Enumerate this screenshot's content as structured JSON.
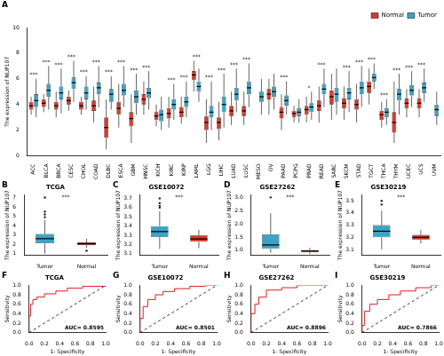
{
  "chart_data": [
    {
      "panel": "A",
      "type": "box",
      "y_label": "The expression of NUP107",
      "legend": "top-right",
      "grid": false,
      "ylim": [
        0,
        10
      ],
      "yticks": [
        0,
        2,
        4,
        6,
        8,
        10
      ],
      "categories": [
        "ACC",
        "BLCA",
        "BRCA",
        "CESC",
        "CHOL",
        "COAD",
        "DLBC",
        "ESCA",
        "GBM",
        "HNSC",
        "KICH",
        "KIRC",
        "KIRP",
        "LAML",
        "LGG",
        "LIHC",
        "LUAD",
        "LUSC",
        "MESO",
        "OV",
        "PAAD",
        "PCPG",
        "PRAD",
        "READ",
        "SARC",
        "SKCM",
        "STAD",
        "TGCT",
        "THCA",
        "THYM",
        "UCEC",
        "UCS",
        "UVM"
      ],
      "significance": [
        "***",
        "***",
        "***",
        "***",
        "***",
        "***",
        "***",
        "***",
        "***",
        "***",
        null,
        "***",
        "***",
        "***",
        "***",
        "***",
        "***",
        "***",
        null,
        null,
        "***",
        null,
        "*",
        "***",
        null,
        "***",
        "***",
        "***",
        "***",
        "***",
        "***",
        "***",
        null
      ],
      "series": [
        {
          "name": "Normal",
          "color": "#d93a2b",
          "values": [
            [
              3.2,
              3.6,
              3.9,
              4.2,
              4.6
            ],
            [
              3.4,
              3.8,
              4.1,
              4.4,
              4.8
            ],
            [
              3.0,
              3.6,
              3.9,
              4.2,
              5.0
            ],
            [
              3.5,
              4.0,
              4.3,
              4.6,
              5.1
            ],
            [
              3.2,
              3.6,
              3.9,
              4.2,
              4.6
            ],
            [
              2.6,
              3.5,
              3.9,
              4.3,
              5.4
            ],
            [
              0.5,
              1.4,
              2.2,
              3.0,
              4.4
            ],
            [
              2.2,
              3.2,
              3.7,
              4.2,
              5.6
            ],
            [
              1.0,
              2.3,
              2.9,
              3.4,
              4.8
            ],
            [
              3.2,
              4.0,
              4.4,
              4.8,
              5.8
            ],
            [
              2.3,
              2.8,
              3.1,
              3.4,
              4.0
            ],
            [
              2.2,
              2.9,
              3.3,
              3.7,
              4.6
            ],
            [
              2.5,
              3.0,
              3.4,
              3.8,
              4.6
            ],
            [
              5.0,
              5.9,
              6.3,
              6.6,
              7.4
            ],
            [
              1.0,
              2.0,
              2.6,
              3.1,
              4.4
            ],
            [
              1.2,
              2.1,
              2.6,
              3.0,
              4.2
            ],
            [
              2.4,
              3.1,
              3.5,
              3.9,
              5.0
            ],
            [
              2.4,
              3.1,
              3.5,
              3.9,
              5.0
            ],
            null,
            [
              3.2,
              4.4,
              4.8,
              5.2,
              6.0
            ],
            [
              2.0,
              2.9,
              3.4,
              3.8,
              4.8
            ],
            [
              2.6,
              3.0,
              3.3,
              3.5,
              3.9
            ],
            [
              2.6,
              3.2,
              3.6,
              3.9,
              4.6
            ],
            [
              2.6,
              3.5,
              3.9,
              4.3,
              5.4
            ],
            [
              2.8,
              4.0,
              4.6,
              5.1,
              6.4
            ],
            [
              2.8,
              3.7,
              4.1,
              4.5,
              5.4
            ],
            [
              2.6,
              3.6,
              4.0,
              4.4,
              5.6
            ],
            [
              4.0,
              4.9,
              5.4,
              5.8,
              6.8
            ],
            [
              2.2,
              2.8,
              3.2,
              3.5,
              4.2
            ],
            [
              1.0,
              1.8,
              2.6,
              3.4,
              5.8
            ],
            [
              3.0,
              3.7,
              4.1,
              4.5,
              5.2
            ],
            [
              3.0,
              3.7,
              4.1,
              4.5,
              5.2
            ],
            null
          ]
        },
        {
          "name": "Tumor",
          "color": "#3ba3c6",
          "values": [
            [
              3.0,
              3.8,
              4.3,
              4.8,
              6.0
            ],
            [
              3.6,
              4.6,
              5.1,
              5.6,
              7.0
            ],
            [
              3.3,
              4.4,
              4.9,
              5.4,
              6.8
            ],
            [
              4.2,
              5.2,
              5.7,
              6.1,
              7.4
            ],
            [
              3.6,
              4.4,
              4.9,
              5.4,
              6.2
            ],
            [
              3.8,
              4.8,
              5.3,
              5.7,
              7.0
            ],
            [
              3.6,
              4.2,
              4.8,
              5.2,
              6.2
            ],
            [
              3.8,
              4.7,
              5.1,
              5.6,
              7.0
            ],
            [
              3.2,
              4.1,
              4.6,
              5.1,
              6.4
            ],
            [
              3.6,
              4.5,
              4.9,
              5.3,
              6.6
            ],
            [
              2.0,
              2.7,
              3.2,
              3.6,
              4.6
            ],
            [
              2.8,
              3.6,
              4.0,
              4.4,
              5.6
            ],
            [
              3.0,
              3.8,
              4.2,
              4.6,
              5.8
            ],
            [
              4.2,
              5.0,
              5.4,
              5.8,
              6.8
            ],
            [
              2.0,
              3.0,
              3.4,
              3.9,
              5.8
            ],
            [
              2.2,
              3.4,
              4.0,
              4.6,
              6.4
            ],
            [
              3.4,
              4.3,
              4.8,
              5.3,
              6.8
            ],
            [
              3.8,
              4.8,
              5.3,
              5.8,
              7.2
            ],
            [
              3.2,
              4.2,
              4.6,
              5.0,
              6.0
            ],
            [
              3.6,
              4.6,
              5.0,
              5.4,
              6.4
            ],
            [
              3.2,
              3.9,
              4.3,
              4.7,
              5.8
            ],
            [
              2.6,
              3.1,
              3.4,
              3.7,
              4.4
            ],
            [
              2.8,
              3.4,
              3.8,
              4.1,
              5.0
            ],
            [
              3.8,
              4.8,
              5.2,
              5.6,
              6.8
            ],
            [
              3.2,
              4.2,
              4.8,
              5.3,
              6.8
            ],
            [
              3.4,
              4.4,
              4.9,
              5.3,
              6.6
            ],
            [
              3.8,
              4.8,
              5.3,
              5.8,
              7.0
            ],
            [
              5.2,
              5.8,
              6.1,
              6.4,
              7.2
            ],
            [
              2.4,
              3.0,
              3.4,
              3.7,
              4.4
            ],
            [
              3.2,
              4.3,
              4.8,
              5.2,
              6.4
            ],
            [
              3.8,
              4.7,
              5.1,
              5.5,
              6.6
            ],
            [
              4.2,
              4.9,
              5.3,
              5.7,
              6.8
            ],
            [
              2.4,
              3.1,
              3.6,
              4.0,
              5.0
            ]
          ]
        }
      ]
    },
    {
      "panel": "B",
      "type": "box",
      "title": "TCGA",
      "y_label": "The expression of NUP107",
      "grid": false,
      "ylim": [
        0.8,
        7.3
      ],
      "yticks": [
        1,
        2,
        3,
        4,
        5,
        6,
        7
      ],
      "categories": [
        "Tumor",
        "Normal"
      ],
      "significance": "***",
      "series": [
        {
          "colors": [
            "#3ba3c6",
            "#d93a2b"
          ],
          "values": [
            [
              1.0,
              2.1,
              2.6,
              3.1,
              4.6
            ],
            [
              1.6,
              1.9,
              2.05,
              2.2,
              2.6
            ]
          ],
          "outliers": [
            [
              4.9,
              5.2,
              5.5,
              7.0
            ],
            [
              1.3
            ]
          ]
        }
      ]
    },
    {
      "panel": "C",
      "type": "box",
      "title": "GSE10072",
      "y_label": "The expression of NUP107",
      "grid": false,
      "ylim": [
        3.08,
        3.74
      ],
      "yticks": [
        3.1,
        3.2,
        3.3,
        3.4,
        3.5,
        3.6,
        3.7
      ],
      "categories": [
        "Tumor",
        "Normal"
      ],
      "significance": "***",
      "series": [
        {
          "colors": [
            "#3ba3c6",
            "#d93a2b"
          ],
          "values": [
            [
              3.15,
              3.28,
              3.34,
              3.4,
              3.56
            ],
            [
              3.16,
              3.23,
              3.26,
              3.3,
              3.36
            ]
          ],
          "outliers": [
            [
              3.6,
              3.62,
              3.65,
              3.7
            ],
            []
          ]
        }
      ]
    },
    {
      "panel": "D",
      "type": "box",
      "title": "GSE27262",
      "y_label": "The expression of NUP107",
      "grid": false,
      "ylim": [
        0.8,
        3.1
      ],
      "yticks": [
        {
          "value": 1,
          "label": "1.0"
        },
        1.5,
        {
          "value": 2,
          "label": "2.0"
        },
        2.5,
        {
          "value": 3,
          "label": "3.0"
        }
      ],
      "categories": [
        "Tumor",
        "Normal"
      ],
      "significance": "***",
      "series": [
        {
          "colors": [
            "#3ba3c6",
            "#d93a2b"
          ],
          "values": [
            [
              0.9,
              1.05,
              1.2,
              1.6,
              2.4
            ],
            [
              0.85,
              0.92,
              0.97,
              1.0,
              1.1
            ]
          ],
          "outliers": [
            [
              3.0
            ],
            []
          ]
        }
      ]
    },
    {
      "panel": "E",
      "type": "box",
      "title": "GSE30219",
      "y_label": "The expression of NUP107",
      "grid": false,
      "ylim": [
        3.05,
        3.55
      ],
      "yticks": [
        3.1,
        3.2,
        3.3,
        3.4,
        3.5
      ],
      "categories": [
        "Tumor",
        "Normal"
      ],
      "significance": "***",
      "series": [
        {
          "colors": [
            "#3ba3c6",
            "#d93a2b"
          ],
          "values": [
            [
              3.1,
              3.2,
              3.25,
              3.3,
              3.42
            ],
            [
              3.15,
              3.18,
              3.2,
              3.22,
              3.26
            ]
          ],
          "outliers": [
            [
              3.47,
              3.5
            ],
            []
          ]
        }
      ]
    },
    {
      "panel": "F",
      "type": "line",
      "title": "TCGA",
      "x_label": "1- Specificity",
      "y_label": "Sensitivity",
      "grid": false,
      "color": "#e41a1c",
      "annotation": "AUC= 0.8595",
      "xlim": [
        0,
        1
      ],
      "xticks": [
        {
          "value": 0,
          "label": "0.0"
        },
        0.2,
        0.4,
        0.6,
        0.8,
        {
          "value": 1,
          "label": "1.0"
        }
      ],
      "ylim": [
        0,
        1
      ],
      "yticks": [
        {
          "value": 0,
          "label": "0.0"
        },
        0.2,
        0.4,
        0.6,
        0.8,
        {
          "value": 1,
          "label": "1.0"
        }
      ],
      "x": [
        0,
        0,
        0.02,
        0.02,
        0.05,
        0.05,
        0.1,
        0.1,
        0.2,
        0.2,
        0.35,
        0.35,
        0.5,
        0.5,
        0.7,
        0.7,
        1,
        1
      ],
      "values": [
        0,
        0.35,
        0.35,
        0.6,
        0.6,
        0.7,
        0.7,
        0.75,
        0.75,
        0.82,
        0.82,
        0.88,
        0.88,
        0.94,
        0.94,
        0.98,
        0.98,
        1
      ],
      "reference_line": {
        "x": [
          0,
          1
        ],
        "values": [
          0,
          1
        ],
        "line_style": "dashed"
      }
    },
    {
      "panel": "G",
      "type": "line",
      "title": "GSE10072",
      "x_label": "1- Specificity",
      "y_label": "Sensitivity",
      "grid": false,
      "color": "#e41a1c",
      "annotation": "AUC= 0.8501",
      "xlim": [
        0,
        1
      ],
      "xticks": [
        {
          "value": 0,
          "label": "0.0"
        },
        0.2,
        0.4,
        0.6,
        0.8,
        {
          "value": 1,
          "label": "1.0"
        }
      ],
      "ylim": [
        0,
        1
      ],
      "yticks": [
        {
          "value": 0,
          "label": "0.0"
        },
        0.2,
        0.4,
        0.6,
        0.8,
        {
          "value": 1,
          "label": "1.0"
        }
      ],
      "x": [
        0,
        0,
        0.04,
        0.04,
        0.1,
        0.1,
        0.2,
        0.2,
        0.3,
        0.3,
        0.45,
        0.45,
        0.65,
        0.65,
        0.85,
        0.85,
        1
      ],
      "values": [
        0,
        0.3,
        0.3,
        0.55,
        0.55,
        0.7,
        0.7,
        0.8,
        0.8,
        0.87,
        0.87,
        0.93,
        0.93,
        0.98,
        0.98,
        1,
        1
      ],
      "reference_line": {
        "x": [
          0,
          1
        ],
        "values": [
          0,
          1
        ],
        "line_style": "dashed"
      }
    },
    {
      "panel": "H",
      "type": "line",
      "title": "GSE27262",
      "x_label": "1- Specificity",
      "y_label": "Sensitivity",
      "grid": false,
      "color": "#e41a1c",
      "annotation": "AUC= 0.8896",
      "xlim": [
        0,
        1
      ],
      "xticks": [
        {
          "value": 0,
          "label": "0.0"
        },
        0.2,
        0.4,
        0.6,
        0.8,
        {
          "value": 1,
          "label": "1.0"
        }
      ],
      "ylim": [
        0,
        1
      ],
      "yticks": [
        {
          "value": 0,
          "label": "0.0"
        },
        0.2,
        0.4,
        0.6,
        0.8,
        {
          "value": 1,
          "label": "1.0"
        }
      ],
      "x": [
        0,
        0,
        0.05,
        0.05,
        0.1,
        0.1,
        0.2,
        0.2,
        0.4,
        0.4,
        0.6,
        0.6,
        1
      ],
      "values": [
        0,
        0.4,
        0.4,
        0.6,
        0.6,
        0.75,
        0.75,
        0.9,
        0.9,
        0.95,
        0.95,
        1,
        1
      ],
      "reference_line": {
        "x": [
          0,
          1
        ],
        "values": [
          0,
          1
        ],
        "line_style": "dashed"
      }
    },
    {
      "panel": "I",
      "type": "line",
      "title": "GSE30219",
      "x_label": "1- Specificity",
      "y_label": "Sensitivity",
      "grid": false,
      "color": "#e41a1c",
      "annotation": "AUC= 0.7866",
      "xlim": [
        0,
        1
      ],
      "xticks": [
        {
          "value": 0,
          "label": "0.0"
        },
        0.2,
        0.4,
        0.6,
        0.8,
        {
          "value": 1,
          "label": "1.0"
        }
      ],
      "ylim": [
        0,
        1
      ],
      "yticks": [
        {
          "value": 0,
          "label": "0.0"
        },
        0.2,
        0.4,
        0.6,
        0.8,
        {
          "value": 1,
          "label": "1.0"
        }
      ],
      "x": [
        0,
        0,
        0.03,
        0.03,
        0.1,
        0.1,
        0.2,
        0.2,
        0.35,
        0.35,
        0.5,
        0.5,
        0.7,
        0.7,
        0.9,
        0.9,
        1
      ],
      "values": [
        0,
        0.15,
        0.15,
        0.45,
        0.45,
        0.6,
        0.6,
        0.7,
        0.7,
        0.8,
        0.8,
        0.88,
        0.88,
        0.95,
        0.95,
        1,
        1
      ],
      "reference_line": {
        "x": [
          0,
          1
        ],
        "values": [
          0,
          1
        ],
        "line_style": "dashed"
      }
    }
  ]
}
